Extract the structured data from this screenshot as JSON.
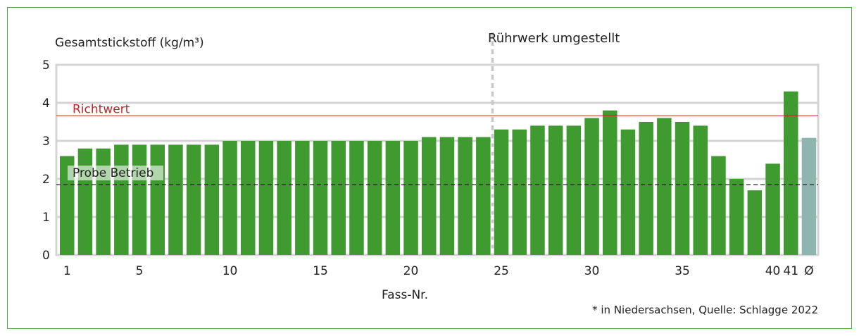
{
  "chart_data": {
    "type": "bar",
    "ylabel": "Gesamtstickstoff (kg/m³)",
    "xlabel": "Fass-Nr.",
    "ylim": [
      0,
      5
    ],
    "yticks": [
      "0",
      "1",
      "2",
      "3",
      "4",
      "5"
    ],
    "grid": true,
    "categories": [
      "1",
      "2",
      "3",
      "4",
      "5",
      "6",
      "7",
      "8",
      "9",
      "10",
      "11",
      "12",
      "13",
      "14",
      "15",
      "16",
      "17",
      "18",
      "19",
      "20",
      "21",
      "22",
      "23",
      "24",
      "25",
      "26",
      "27",
      "28",
      "29",
      "30",
      "31",
      "32",
      "33",
      "34",
      "35",
      "36",
      "37",
      "38",
      "39",
      "40",
      "41",
      "Ø"
    ],
    "x_tick_labels": [
      "1",
      "",
      "",
      "",
      "5",
      "",
      "",
      "",
      "",
      "10",
      "",
      "",
      "",
      "",
      "15",
      "",
      "",
      "",
      "",
      "20",
      "",
      "",
      "",
      "",
      "25",
      "",
      "",
      "",
      "",
      "30",
      "",
      "",
      "",
      "",
      "35",
      "",
      "",
      "",
      "",
      "40",
      "41",
      "Ø"
    ],
    "values": [
      2.6,
      2.8,
      2.8,
      2.9,
      2.9,
      2.9,
      2.9,
      2.9,
      2.9,
      3.0,
      3.0,
      3.0,
      3.0,
      3.0,
      3.0,
      3.0,
      3.0,
      3.0,
      3.0,
      3.0,
      3.1,
      3.1,
      3.1,
      3.1,
      3.3,
      3.3,
      3.4,
      3.4,
      3.4,
      3.6,
      3.8,
      3.3,
      3.5,
      3.6,
      3.5,
      3.4,
      2.6,
      2.0,
      1.7,
      2.4,
      4.3,
      3.08
    ],
    "bar_colors": {
      "default": "#3f9a2f",
      "average": "#8fb5b0"
    },
    "reference_lines": [
      {
        "label": "Richtwert",
        "value": 3.66,
        "color": "#c0272d",
        "style": "solid"
      },
      {
        "label": "Probe Betrieb",
        "value": 1.85,
        "color": "#222222",
        "style": "dashed"
      }
    ],
    "annotation": {
      "label": "Rührwerk umgestellt",
      "after_bar": 24
    },
    "footnote": "* in Niedersachsen, Quelle: Schlagge 2022"
  }
}
